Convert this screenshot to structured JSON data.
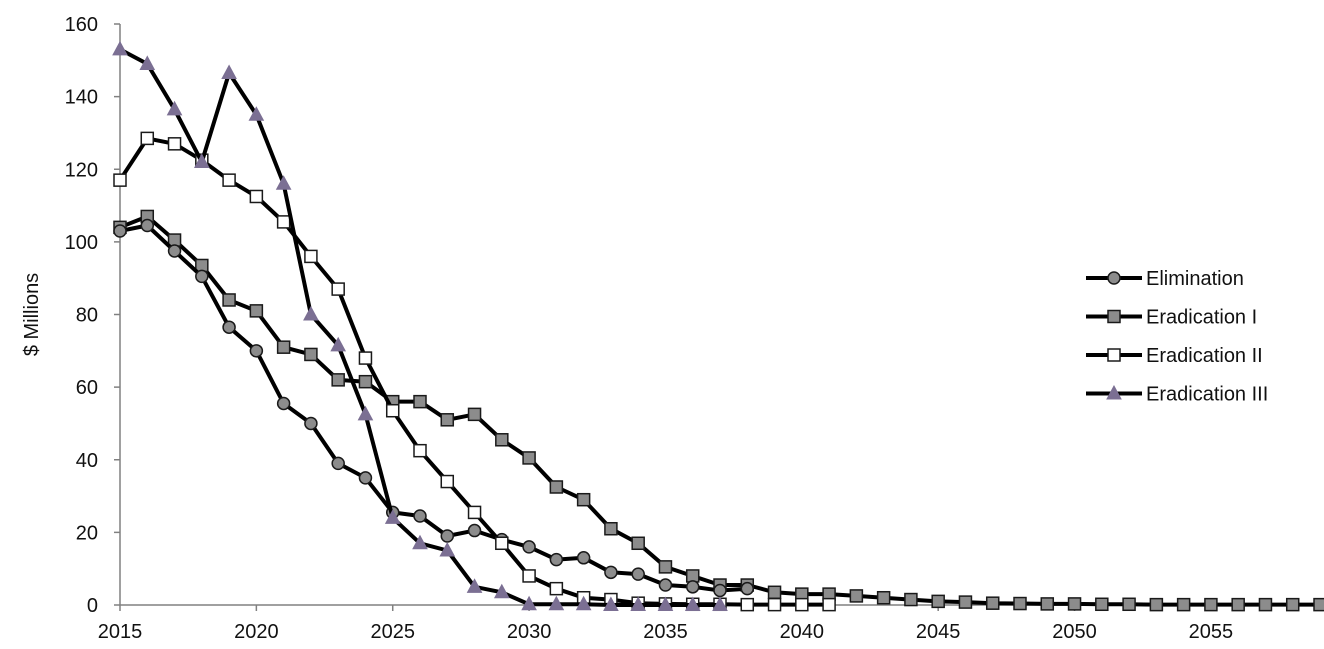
{
  "chart_data": {
    "type": "line",
    "title": "",
    "xlabel": "",
    "ylabel": "$ Millions",
    "xlim": [
      2015,
      2059
    ],
    "ylim": [
      0,
      160
    ],
    "x_ticks": [
      2015,
      2020,
      2025,
      2030,
      2035,
      2040,
      2045,
      2050,
      2055
    ],
    "y_ticks": [
      0,
      20,
      40,
      60,
      80,
      100,
      120,
      140,
      160
    ],
    "grid": false,
    "legend_position": "right",
    "series": [
      {
        "name": "Elimination",
        "marker": "circle",
        "marker_fill": "#8c8c8c",
        "x": [
          2015,
          2016,
          2017,
          2018,
          2019,
          2020,
          2021,
          2022,
          2023,
          2024,
          2025,
          2026,
          2027,
          2028,
          2029,
          2030,
          2031,
          2032,
          2033,
          2034,
          2035,
          2036,
          2037,
          2038
        ],
        "values": [
          103,
          104.5,
          97.5,
          90.5,
          76.5,
          70,
          55.5,
          50,
          39,
          35,
          25.5,
          24.5,
          19,
          20.5,
          18,
          16,
          12.5,
          13,
          9,
          8.5,
          5.5,
          5,
          4,
          4.5
        ]
      },
      {
        "name": "Eradication I",
        "marker": "square",
        "marker_fill": "#8c8c8c",
        "x": [
          2015,
          2016,
          2017,
          2018,
          2019,
          2020,
          2021,
          2022,
          2023,
          2024,
          2025,
          2026,
          2027,
          2028,
          2029,
          2030,
          2031,
          2032,
          2033,
          2034,
          2035,
          2036,
          2037,
          2038,
          2039,
          2040,
          2041,
          2042,
          2043,
          2044,
          2045,
          2046,
          2047,
          2048,
          2049,
          2050,
          2051,
          2052,
          2053,
          2054,
          2055,
          2056,
          2057,
          2058,
          2059
        ],
        "values": [
          104,
          107,
          100.5,
          93.5,
          84,
          81,
          71,
          69,
          62,
          61.5,
          56,
          56,
          51,
          52.5,
          45.5,
          40.5,
          32.5,
          29,
          21,
          17,
          10.5,
          8,
          5.5,
          5.5,
          3.5,
          3,
          3,
          2.5,
          2,
          1.5,
          1,
          0.8,
          0.5,
          0.4,
          0.3,
          0.3,
          0.2,
          0.2,
          0.1,
          0.1,
          0.1,
          0.1,
          0.1,
          0.1,
          0.1
        ]
      },
      {
        "name": "Eradication II",
        "marker": "square",
        "marker_fill": "#ffffff",
        "x": [
          2015,
          2016,
          2017,
          2018,
          2019,
          2020,
          2021,
          2022,
          2023,
          2024,
          2025,
          2026,
          2027,
          2028,
          2029,
          2030,
          2031,
          2032,
          2033,
          2034,
          2035,
          2036,
          2037,
          2038,
          2039,
          2040,
          2041
        ],
        "values": [
          117,
          128.5,
          127,
          122.5,
          117,
          112.5,
          105.5,
          96,
          87,
          68,
          53.5,
          42.5,
          34,
          25.5,
          17,
          8,
          4.5,
          2,
          1.5,
          0.5,
          0.3,
          0.2,
          0.2,
          0.1,
          0.1,
          0.1,
          0.1
        ]
      },
      {
        "name": "Eradication III",
        "marker": "triangle",
        "marker_fill": "#7b6f93",
        "x": [
          2015,
          2016,
          2017,
          2018,
          2019,
          2020,
          2021,
          2022,
          2023,
          2024,
          2025,
          2026,
          2027,
          2028,
          2029,
          2030,
          2031,
          2032,
          2033,
          2034,
          2035,
          2036,
          2037
        ],
        "values": [
          153,
          149,
          136.5,
          122,
          146.5,
          135,
          116,
          80,
          71.5,
          52.5,
          24,
          17,
          15,
          5,
          3.5,
          0.2,
          0.2,
          0.2,
          0,
          0,
          0,
          0,
          0
        ]
      }
    ]
  }
}
